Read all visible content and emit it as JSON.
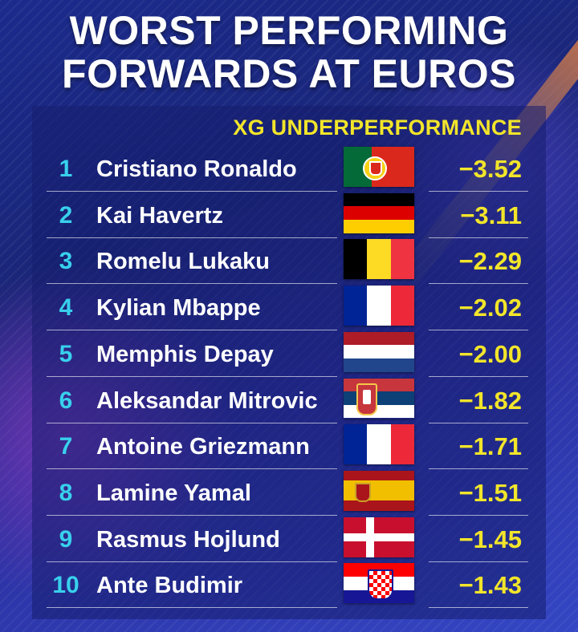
{
  "title_line_1": "WORST PERFORMING",
  "title_line_2": "FORWARDS AT EUROS",
  "chart_data": {
    "type": "table",
    "title": "WORST PERFORMING FORWARDS AT EUROS",
    "value_header": "XG UNDERPERFORMANCE",
    "rows": [
      {
        "rank": "1",
        "player": "Cristiano Ronaldo",
        "flag": "portugal-flag",
        "value": -3.52,
        "label": "−3.52"
      },
      {
        "rank": "2",
        "player": "Kai Havertz",
        "flag": "germany-flag",
        "value": -3.11,
        "label": "−3.11"
      },
      {
        "rank": "3",
        "player": "Romelu Lukaku",
        "flag": "belgium-flag",
        "value": -2.29,
        "label": "−2.29"
      },
      {
        "rank": "4",
        "player": "Kylian Mbappe",
        "flag": "france-flag",
        "value": -2.02,
        "label": "−2.02"
      },
      {
        "rank": "5",
        "player": "Memphis Depay",
        "flag": "netherlands-flag",
        "value": -2.0,
        "label": "−2.00"
      },
      {
        "rank": "6",
        "player": "Aleksandar Mitrovic",
        "flag": "serbia-flag",
        "value": -1.82,
        "label": "−1.82"
      },
      {
        "rank": "7",
        "player": "Antoine Griezmann",
        "flag": "france-flag",
        "value": -1.71,
        "label": "−1.71"
      },
      {
        "rank": "8",
        "player": "Lamine Yamal",
        "flag": "spain-flag",
        "value": -1.51,
        "label": "−1.51"
      },
      {
        "rank": "9",
        "player": "Rasmus Hojlund",
        "flag": "denmark-flag",
        "value": -1.45,
        "label": "−1.45"
      },
      {
        "rank": "10",
        "player": "Ante Budimir",
        "flag": "croatia-flag",
        "value": -1.43,
        "label": "−1.43"
      }
    ]
  },
  "colors": {
    "background": "#1b2a8c",
    "value_text": "#f2e52a",
    "rank_text": "#38d0ec",
    "name_text": "#ffffff"
  }
}
